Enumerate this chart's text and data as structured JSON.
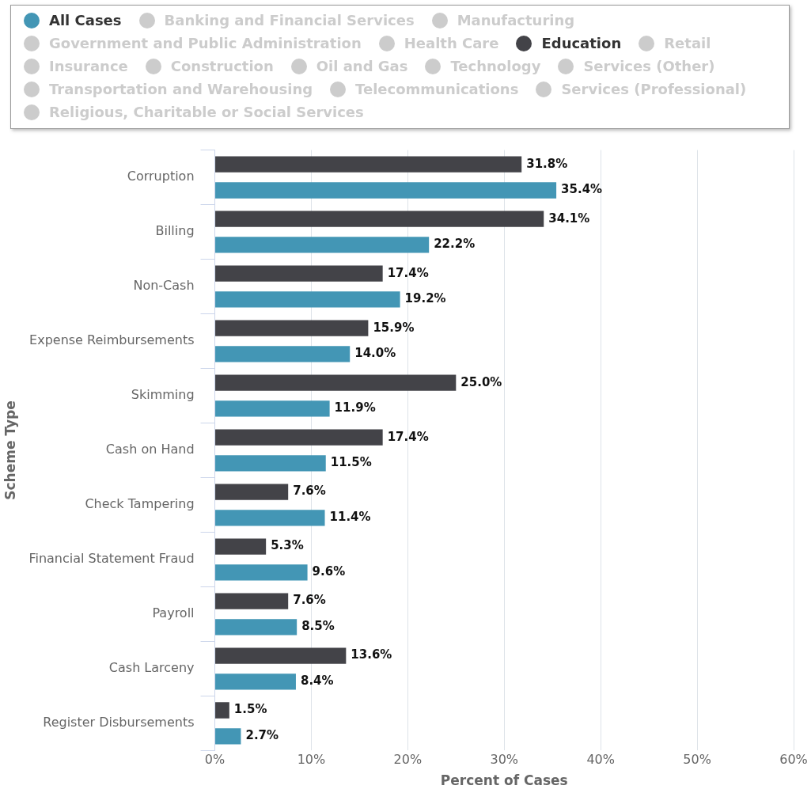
{
  "chart_data": {
    "type": "bar",
    "orientation": "horizontal",
    "xlabel": "Percent of Cases",
    "ylabel": "Scheme Type",
    "categories": [
      "Corruption",
      "Billing",
      "Non-Cash",
      "Expense Reimbursements",
      "Skimming",
      "Cash on Hand",
      "Check Tampering",
      "Financial Statement Fraud",
      "Payroll",
      "Cash Larceny",
      "Register Disbursements"
    ],
    "series": [
      {
        "name": "All Cases",
        "color": "#4396b5",
        "values": [
          35.4,
          22.2,
          19.2,
          14.0,
          11.9,
          11.5,
          11.4,
          9.6,
          8.5,
          8.4,
          2.7
        ],
        "value_labels": [
          "35.4%",
          "22.2%",
          "19.2%",
          "14.0%",
          "11.9%",
          "11.5%",
          "11.4%",
          "9.6%",
          "8.5%",
          "8.4%",
          "2.7%"
        ]
      },
      {
        "name": "Banking and Financial Services",
        "color": "#cccccc",
        "values": [
          null,
          null,
          null,
          null,
          null,
          null,
          null,
          null,
          null,
          null,
          null
        ]
      },
      {
        "name": "Manufacturing",
        "color": "#cccccc",
        "values": [
          null,
          null,
          null,
          null,
          null,
          null,
          null,
          null,
          null,
          null,
          null
        ]
      },
      {
        "name": "Government and Public Administration",
        "color": "#cccccc",
        "values": [
          null,
          null,
          null,
          null,
          null,
          null,
          null,
          null,
          null,
          null,
          null
        ]
      },
      {
        "name": "Health Care",
        "color": "#cccccc",
        "values": [
          null,
          null,
          null,
          null,
          null,
          null,
          null,
          null,
          null,
          null,
          null
        ]
      },
      {
        "name": "Education",
        "color": "#434348",
        "values": [
          31.8,
          34.1,
          17.4,
          15.9,
          25.0,
          17.4,
          7.6,
          5.3,
          7.6,
          13.6,
          1.5
        ],
        "value_labels": [
          "31.8%",
          "34.1%",
          "17.4%",
          "15.9%",
          "25.0%",
          "17.4%",
          "7.6%",
          "5.3%",
          "7.6%",
          "13.6%",
          "1.5%"
        ]
      },
      {
        "name": "Retail",
        "color": "#cccccc",
        "values": [
          null,
          null,
          null,
          null,
          null,
          null,
          null,
          null,
          null,
          null,
          null
        ]
      },
      {
        "name": "Insurance",
        "color": "#cccccc",
        "values": [
          null,
          null,
          null,
          null,
          null,
          null,
          null,
          null,
          null,
          null,
          null
        ]
      },
      {
        "name": "Construction",
        "color": "#cccccc",
        "values": [
          null,
          null,
          null,
          null,
          null,
          null,
          null,
          null,
          null,
          null,
          null
        ]
      },
      {
        "name": "Oil and Gas",
        "color": "#cccccc",
        "values": [
          null,
          null,
          null,
          null,
          null,
          null,
          null,
          null,
          null,
          null,
          null
        ]
      },
      {
        "name": "Technology",
        "color": "#cccccc",
        "values": [
          null,
          null,
          null,
          null,
          null,
          null,
          null,
          null,
          null,
          null,
          null
        ]
      },
      {
        "name": "Services (Other)",
        "color": "#cccccc",
        "values": [
          null,
          null,
          null,
          null,
          null,
          null,
          null,
          null,
          null,
          null,
          null
        ]
      },
      {
        "name": "Transportation and Warehousing",
        "color": "#cccccc",
        "values": [
          null,
          null,
          null,
          null,
          null,
          null,
          null,
          null,
          null,
          null,
          null
        ]
      },
      {
        "name": "Telecommunications",
        "color": "#cccccc",
        "values": [
          null,
          null,
          null,
          null,
          null,
          null,
          null,
          null,
          null,
          null,
          null
        ]
      },
      {
        "name": "Services (Professional)",
        "color": "#cccccc",
        "values": [
          null,
          null,
          null,
          null,
          null,
          null,
          null,
          null,
          null,
          null,
          null
        ]
      },
      {
        "name": "Religious, Charitable or Social Services",
        "color": "#cccccc",
        "values": [
          null,
          null,
          null,
          null,
          null,
          null,
          null,
          null,
          null,
          null,
          null
        ]
      }
    ],
    "xlim": [
      0,
      60
    ],
    "xticks": [
      {
        "value": 0,
        "label": "0%"
      },
      {
        "value": 10,
        "label": "10%"
      },
      {
        "value": 20,
        "label": "20%"
      },
      {
        "value": 30,
        "label": "30%"
      },
      {
        "value": 40,
        "label": "40%"
      },
      {
        "value": 50,
        "label": "50%"
      },
      {
        "value": 60,
        "label": "60%"
      }
    ],
    "grid": "x",
    "legend": "top"
  }
}
